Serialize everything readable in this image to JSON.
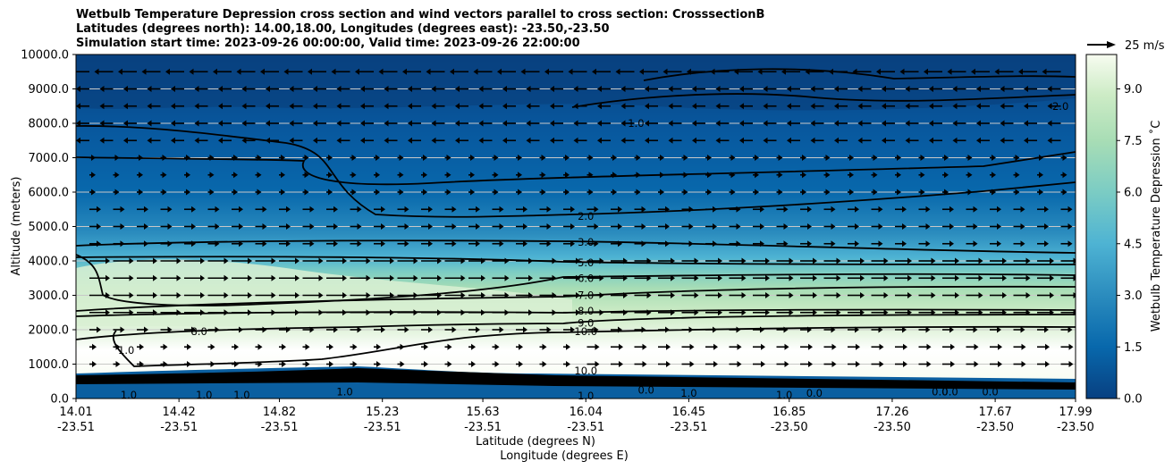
{
  "chart_data": {
    "type": "contour",
    "title_lines": [
      "Wetbulb Temperature Depression cross section and wind vectors parallel to cross section: CrosssectionB",
      "Latitudes (degrees north): 14.00,18.00, Longitudes (degrees east): -23.50,-23.50",
      "Simulation start time: 2023-09-26 00:00:00, Valid time: 2023-09-26 22:00:00"
    ],
    "xlabel_lat": "Latitude (degrees N)",
    "xlabel_lon": "Longitude (degrees E)",
    "ylabel": "Altitude (meters)",
    "ylim": [
      0,
      10000
    ],
    "y_ticks": [
      "0.0",
      "1000.0",
      "2000.0",
      "3000.0",
      "4000.0",
      "5000.0",
      "6000.0",
      "7000.0",
      "8000.0",
      "9000.0",
      "10000.0"
    ],
    "y_tick_values": [
      0,
      1000,
      2000,
      3000,
      4000,
      5000,
      6000,
      7000,
      8000,
      9000,
      10000
    ],
    "xlim": [
      14.01,
      17.99
    ],
    "x_ticks_lat": [
      "14.01",
      "14.42",
      "14.82",
      "15.23",
      "15.63",
      "16.04",
      "16.45",
      "16.85",
      "17.26",
      "17.67",
      "17.99"
    ],
    "x_ticks_lon": [
      "-23.51",
      "-23.51",
      "-23.51",
      "-23.51",
      "-23.51",
      "-23.51",
      "-23.51",
      "-23.50",
      "-23.50",
      "-23.50",
      "-23.50"
    ],
    "x_tick_values": [
      14.01,
      14.42,
      14.82,
      15.23,
      15.63,
      16.04,
      16.45,
      16.85,
      17.26,
      17.67,
      17.99
    ],
    "grid": "horizontal",
    "colorbar": {
      "label": "Wetbulb Temperature Depression ˚C",
      "ticks": [
        "0.0",
        "1.5",
        "3.0",
        "4.5",
        "6.0",
        "7.5",
        "9.0"
      ],
      "tick_values": [
        0,
        1.5,
        3,
        4.5,
        6,
        7.5,
        9
      ],
      "range": [
        0,
        10
      ],
      "colormap": "GnBu",
      "colors": [
        "#08306b",
        "#08589e",
        "#2b8cbe",
        "#4eb3d3",
        "#7bccc4",
        "#a8ddb5",
        "#ccebc5",
        "#f7fcf0"
      ]
    },
    "quiver_key": {
      "label": "25 m/s",
      "speed": 25
    },
    "contour_labels": [
      {
        "text": "2.0",
        "lat": 16.04,
        "z": 5300
      },
      {
        "text": "3.0",
        "lat": 16.04,
        "z": 4550
      },
      {
        "text": "5.0",
        "lat": 16.04,
        "z": 3950
      },
      {
        "text": "6.0",
        "lat": 16.04,
        "z": 3500
      },
      {
        "text": "7.0",
        "lat": 16.04,
        "z": 3000
      },
      {
        "text": "8.0",
        "lat": 16.04,
        "z": 2550
      },
      {
        "text": "9.0",
        "lat": 16.04,
        "z": 2200
      },
      {
        "text": "10.0",
        "lat": 16.04,
        "z": 1950
      },
      {
        "text": "8.0",
        "lat": 14.5,
        "z": 1950
      },
      {
        "text": "1.0",
        "lat": 14.21,
        "z": 1400
      },
      {
        "text": "10.0",
        "lat": 16.04,
        "z": 800
      },
      {
        "text": "1.0",
        "lat": 16.04,
        "z": 80
      },
      {
        "text": "0.0",
        "lat": 16.28,
        "z": 250
      },
      {
        "text": "1.0",
        "lat": 16.45,
        "z": 150
      },
      {
        "text": "1.0",
        "lat": 16.83,
        "z": 100
      },
      {
        "text": "0.0",
        "lat": 16.95,
        "z": 150
      },
      {
        "text": "0.0",
        "lat": 17.45,
        "z": 200
      },
      {
        "text": "0.0",
        "lat": 17.49,
        "z": 200
      },
      {
        "text": "0.0",
        "lat": 17.65,
        "z": 200
      },
      {
        "text": "1.0",
        "lat": 14.22,
        "z": 100
      },
      {
        "text": "1.0",
        "lat": 14.52,
        "z": 100
      },
      {
        "text": "1.0",
        "lat": 14.67,
        "z": 100
      },
      {
        "text": "1.0",
        "lat": 15.08,
        "z": 200
      },
      {
        "text": "1.0",
        "lat": 16.24,
        "z": 8000
      },
      {
        "text": "2.0",
        "lat": 17.93,
        "z": 8500
      }
    ]
  }
}
